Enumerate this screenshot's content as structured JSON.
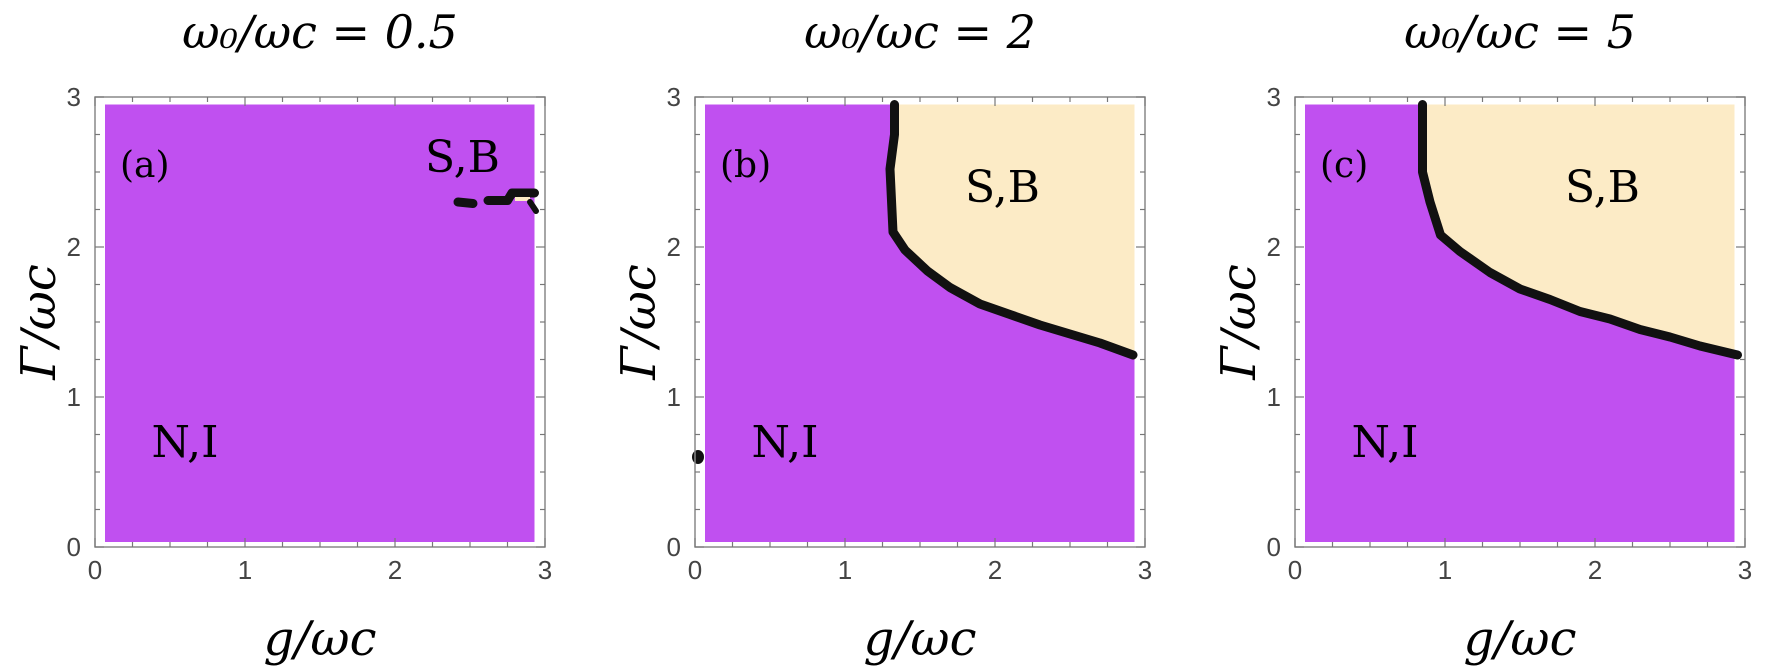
{
  "chart_data": [
    {
      "type": "heatmap",
      "panel": "(a)",
      "title": "ω₀/ωc = 0.5",
      "xlabel": "g/ωc",
      "ylabel": "Γ/ωc",
      "xlim": [
        0,
        3
      ],
      "ylim": [
        0,
        3
      ],
      "xticks": [
        "0",
        "1",
        "2",
        "3"
      ],
      "yticks": [
        "0",
        "1",
        "2",
        "3"
      ],
      "regions": [
        {
          "label": "N,I",
          "color": "#C050F0",
          "label_pos_data": [
            0.6,
            0.7
          ]
        },
        {
          "label": "S,B",
          "color": "#FCEBC6",
          "label_pos_data": [
            2.45,
            2.6
          ]
        }
      ],
      "boundary": [
        [
          2.38,
          2.3
        ],
        [
          2.48,
          2.3
        ],
        [
          2.55,
          2.3
        ],
        [
          2.62,
          2.33
        ],
        [
          2.73,
          2.33
        ],
        [
          2.82,
          2.37
        ],
        [
          2.93,
          2.37
        ]
      ],
      "boundary_small_islands": [
        [
          2.38,
          2.3
        ],
        [
          2.68,
          2.33
        ],
        [
          2.92,
          2.26
        ]
      ]
    },
    {
      "type": "heatmap",
      "panel": "(b)",
      "title": "ω₀/ωc = 2",
      "xlabel": "g/ωc",
      "ylabel": "Γ/ωc",
      "xlim": [
        0,
        3
      ],
      "ylim": [
        0,
        3
      ],
      "xticks": [
        "0",
        "1",
        "2",
        "3"
      ],
      "yticks": [
        "0",
        "1",
        "2",
        "3"
      ],
      "regions": [
        {
          "label": "N,I",
          "color": "#C050F0",
          "label_pos_data": [
            0.6,
            0.7
          ]
        },
        {
          "label": "S,B",
          "color": "#FCEBC6",
          "label_pos_data": [
            2.05,
            2.4
          ]
        }
      ],
      "boundary": [
        [
          1.33,
          2.95
        ],
        [
          1.33,
          2.75
        ],
        [
          1.3,
          2.52
        ],
        [
          1.32,
          2.1
        ],
        [
          1.4,
          1.98
        ],
        [
          1.55,
          1.84
        ],
        [
          1.7,
          1.73
        ],
        [
          1.9,
          1.62
        ],
        [
          2.1,
          1.55
        ],
        [
          2.3,
          1.48
        ],
        [
          2.5,
          1.42
        ],
        [
          2.7,
          1.36
        ],
        [
          2.92,
          1.28
        ]
      ]
    },
    {
      "type": "heatmap",
      "panel": "(c)",
      "title": "ω₀/ωc = 5",
      "xlabel": "g/ωc",
      "ylabel": "Γ/ωc",
      "xlim": [
        0,
        3
      ],
      "ylim": [
        0,
        3
      ],
      "xticks": [
        "0",
        "1",
        "2",
        "3"
      ],
      "yticks": [
        "0",
        "1",
        "2",
        "3"
      ],
      "regions": [
        {
          "label": "N,I",
          "color": "#C050F0",
          "label_pos_data": [
            0.6,
            0.7
          ]
        },
        {
          "label": "S,B",
          "color": "#FCEBC6",
          "label_pos_data": [
            2.05,
            2.4
          ]
        }
      ],
      "boundary": [
        [
          0.85,
          2.95
        ],
        [
          0.85,
          2.5
        ],
        [
          0.9,
          2.3
        ],
        [
          0.97,
          2.08
        ],
        [
          1.1,
          1.97
        ],
        [
          1.3,
          1.83
        ],
        [
          1.5,
          1.72
        ],
        [
          1.7,
          1.65
        ],
        [
          1.9,
          1.57
        ],
        [
          2.1,
          1.52
        ],
        [
          2.3,
          1.45
        ],
        [
          2.5,
          1.4
        ],
        [
          2.7,
          1.34
        ],
        [
          2.95,
          1.28
        ]
      ]
    }
  ],
  "panel_titles": [
    "ω₀/ωc = 0.5",
    "ω₀/ωc = 2",
    "ω₀/ωc = 5"
  ]
}
